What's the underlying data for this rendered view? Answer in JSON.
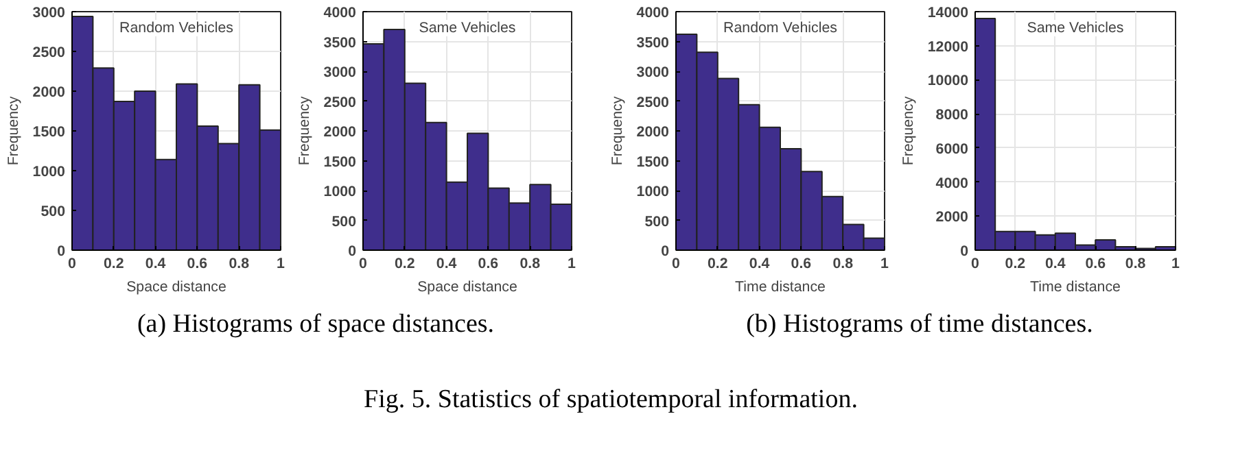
{
  "chart_data": [
    {
      "type": "histogram",
      "title": "Random Vehicles",
      "xlabel": "Space distance",
      "ylabel": "Frequency",
      "bins": [
        0,
        0.1,
        0.2,
        0.3,
        0.4,
        0.5,
        0.6,
        0.7,
        0.8,
        0.9,
        1
      ],
      "values": [
        2940,
        2290,
        1870,
        2000,
        1140,
        2090,
        1560,
        1340,
        2080,
        1510
      ],
      "color": "#3f2e8c",
      "xlim": [
        0,
        1
      ],
      "ylim": [
        0,
        3000
      ],
      "xticks": [
        0,
        0.2,
        0.4,
        0.6,
        0.8,
        1
      ],
      "yticks": [
        0,
        500,
        1000,
        1500,
        2000,
        2500,
        3000
      ],
      "grid": true,
      "annotations": [
        "(a) Histograms of space distances.",
        "Fig. 5. Statistics of spatiotemporal information."
      ]
    },
    {
      "type": "histogram",
      "title": "Same Vehicles",
      "xlabel": "Space distance",
      "ylabel": "Frequency",
      "bins": [
        0,
        0.1,
        0.2,
        0.3,
        0.4,
        0.5,
        0.6,
        0.7,
        0.8,
        0.9,
        1
      ],
      "values": [
        3460,
        3700,
        2800,
        2140,
        1140,
        1960,
        1040,
        790,
        1100,
        770
      ],
      "color": "#3f2e8c",
      "xlim": [
        0,
        1
      ],
      "ylim": [
        0,
        4000
      ],
      "xticks": [
        0,
        0.2,
        0.4,
        0.6,
        0.8,
        1
      ],
      "yticks": [
        0,
        500,
        1000,
        1500,
        2000,
        2500,
        3000,
        3500,
        4000
      ],
      "grid": true
    },
    {
      "type": "histogram",
      "title": "Random Vehicles",
      "xlabel": "Time distance",
      "ylabel": "Frequency",
      "bins": [
        0,
        0.1,
        0.2,
        0.3,
        0.4,
        0.5,
        0.6,
        0.7,
        0.8,
        0.9,
        1
      ],
      "values": [
        3620,
        3320,
        2880,
        2440,
        2060,
        1700,
        1320,
        900,
        430,
        200
      ],
      "color": "#3f2e8c",
      "xlim": [
        0,
        1
      ],
      "ylim": [
        0,
        4000
      ],
      "xticks": [
        0,
        0.2,
        0.4,
        0.6,
        0.8,
        1
      ],
      "yticks": [
        0,
        500,
        1000,
        1500,
        2000,
        2500,
        3000,
        3500,
        4000
      ],
      "grid": true,
      "annotations": [
        "(b) Histograms of time distances."
      ]
    },
    {
      "type": "histogram",
      "title": "Same Vehicles",
      "xlabel": "Time distance",
      "ylabel": "Frequency",
      "bins": [
        0,
        0.1,
        0.2,
        0.3,
        0.4,
        0.5,
        0.6,
        0.7,
        0.8,
        0.9,
        1
      ],
      "values": [
        13600,
        1100,
        1100,
        900,
        1000,
        300,
        600,
        200,
        100,
        200
      ],
      "color": "#3f2e8c",
      "xlim": [
        0,
        1
      ],
      "ylim": [
        0,
        14000
      ],
      "xticks": [
        0,
        0.2,
        0.4,
        0.6,
        0.8,
        1
      ],
      "yticks": [
        0,
        2000,
        4000,
        6000,
        8000,
        10000,
        12000,
        14000
      ],
      "grid": true
    }
  ]
}
